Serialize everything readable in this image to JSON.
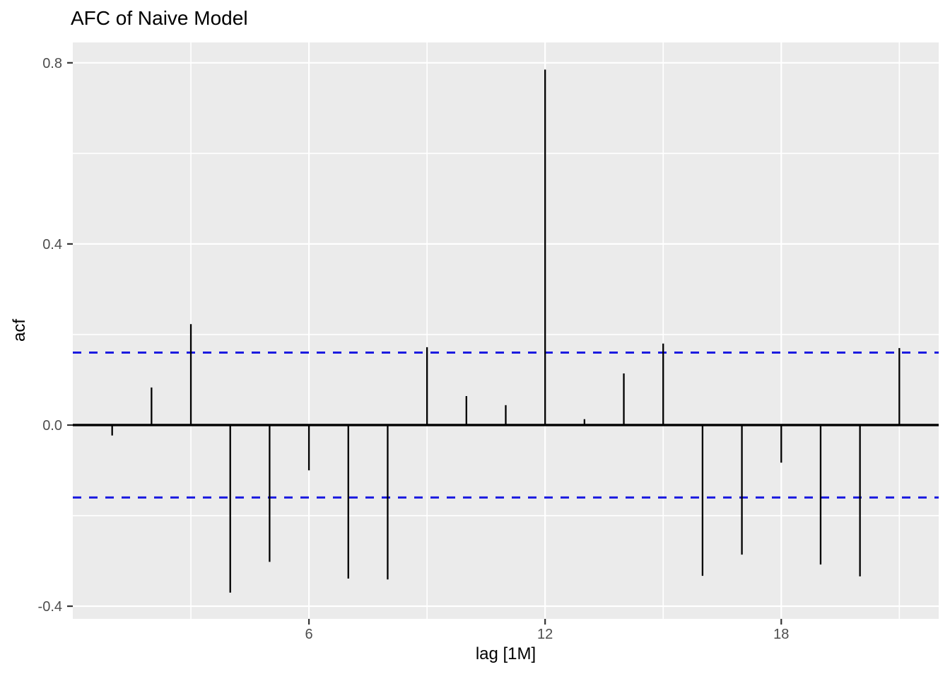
{
  "chart_data": {
    "type": "bar",
    "variant": "acf-stem-plot",
    "title": "AFC of Naive Model",
    "xlabel": "lag [1M]",
    "ylabel": "acf",
    "x_name": "lag",
    "lags": [
      1,
      2,
      3,
      4,
      5,
      6,
      7,
      8,
      9,
      10,
      11,
      12,
      13,
      14,
      15,
      16,
      17,
      18,
      19,
      20,
      21
    ],
    "values": [
      -0.023,
      0.083,
      0.223,
      -0.37,
      -0.302,
      -0.1,
      -0.339,
      -0.341,
      0.172,
      0.064,
      0.044,
      0.785,
      0.013,
      0.114,
      0.18,
      -0.333,
      -0.286,
      -0.083,
      -0.308,
      -0.334,
      0.17
    ],
    "xlim": [
      0,
      22
    ],
    "ylim": [
      -0.428,
      0.845
    ],
    "x_ticks": [
      {
        "v": 6,
        "label": "6"
      },
      {
        "v": 12,
        "label": "12"
      },
      {
        "v": 18,
        "label": "18"
      }
    ],
    "y_ticks": [
      {
        "v": 0.8,
        "label": "0.8"
      },
      {
        "v": 0.4,
        "label": "0.4"
      },
      {
        "v": 0.0,
        "label": "0.0"
      },
      {
        "v": -0.4,
        "label": "-0.4"
      }
    ],
    "x_minor_breaks": [
      3,
      9,
      15,
      21
    ],
    "y_minor_breaks": [
      -0.2,
      0.2,
      0.6
    ],
    "significance_bounds": {
      "upper": 0.16,
      "lower": -0.16,
      "style": "dashed"
    },
    "zero_line": 0,
    "grid": "on",
    "legend": "none",
    "colors": {
      "panel_bg": "#EBEBEB",
      "grid": "#FFFFFF",
      "stem": "#000000",
      "zero_line": "#000000",
      "significance": "#1B1BE0",
      "tick_text": "#4D4D4D",
      "tick_mark": "#333333",
      "title_text": "#000000"
    }
  }
}
